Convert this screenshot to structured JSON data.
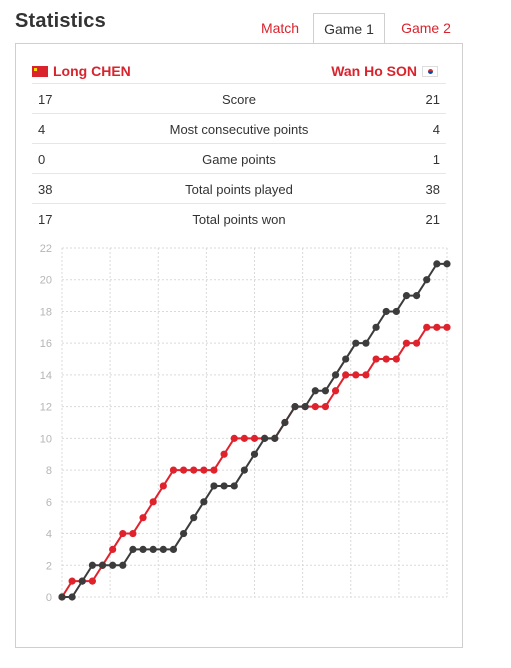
{
  "title": "Statistics",
  "tabs": [
    {
      "label": "Match",
      "active": false
    },
    {
      "label": "Game 1",
      "active": true
    },
    {
      "label": "Game 2",
      "active": false
    }
  ],
  "players": {
    "left": {
      "name": "Long CHEN",
      "flag": "china-flag-icon"
    },
    "right": {
      "name": "Wan Ho SON",
      "flag": "korea-flag-icon"
    }
  },
  "stats": [
    {
      "left": "17",
      "label": "Score",
      "right": "21"
    },
    {
      "left": "4",
      "label": "Most consecutive points",
      "right": "4"
    },
    {
      "left": "0",
      "label": "Game points",
      "right": "1"
    },
    {
      "left": "38",
      "label": "Total points played",
      "right": "38"
    },
    {
      "left": "17",
      "label": "Total points won",
      "right": "21"
    }
  ],
  "colors": {
    "accent": "#d9232d",
    "left_series": "#e0222d",
    "right_series": "#3c3c3c",
    "grid": "#d9d9d9"
  },
  "chart_data": {
    "type": "line",
    "ylim": [
      0,
      22
    ],
    "yticks": [
      0,
      2,
      4,
      6,
      8,
      10,
      12,
      14,
      16,
      18,
      20,
      22
    ],
    "x": [
      0,
      1,
      2,
      3,
      4,
      5,
      6,
      7,
      8,
      9,
      10,
      11,
      12,
      13,
      14,
      15,
      16,
      17,
      18,
      19,
      20,
      21,
      22,
      23,
      24,
      25,
      26,
      27,
      28,
      29,
      30,
      31,
      32,
      33,
      34,
      35,
      36,
      37,
      38
    ],
    "series": [
      {
        "values": [
          0,
          1,
          1,
          1,
          2,
          3,
          4,
          4,
          5,
          6,
          7,
          8,
          8,
          8,
          8,
          8,
          9,
          10,
          10,
          10,
          10,
          10,
          11,
          12,
          12,
          12,
          12,
          13,
          14,
          14,
          14,
          15,
          15,
          15,
          16,
          16,
          17,
          17,
          17
        ],
        "color": "#e0222d"
      },
      {
        "values": [
          0,
          0,
          1,
          2,
          2,
          2,
          2,
          3,
          3,
          3,
          3,
          3,
          4,
          5,
          6,
          7,
          7,
          7,
          8,
          9,
          10,
          10,
          11,
          12,
          12,
          13,
          13,
          14,
          15,
          16,
          16,
          17,
          18,
          18,
          19,
          19,
          20,
          21,
          21
        ],
        "color": "#3c3c3c"
      }
    ]
  }
}
